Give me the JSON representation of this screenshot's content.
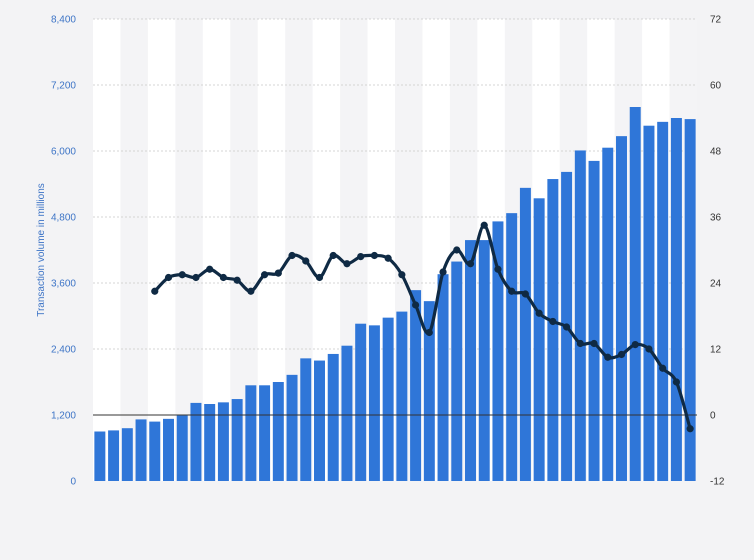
{
  "chart_data": {
    "type": "bar+line",
    "title": "",
    "xlabel": "",
    "ylabel": "Transaction volume in millions",
    "ylim": [
      0,
      8400
    ],
    "y2lim": [
      -12,
      72
    ],
    "yticks": [
      "0",
      "1,200",
      "2,400",
      "3,600",
      "4,800",
      "6,000",
      "7,200",
      "8,400"
    ],
    "y2ticks": [
      "-12",
      "0",
      "12",
      "24",
      "36",
      "48",
      "60",
      "72"
    ],
    "grid": true,
    "colors": {
      "bars": "#2f76d8",
      "line": "#0f2a44",
      "background": "#ffffff",
      "band": "#f4f4f6"
    },
    "series": [
      {
        "type": "bar",
        "axis": "left",
        "values": [
          900,
          920,
          960,
          1120,
          1080,
          1130,
          1190,
          1420,
          1400,
          1430,
          1490,
          1740,
          1740,
          1800,
          1930,
          2230,
          2190,
          2310,
          2460,
          2860,
          2830,
          2970,
          3080,
          3470,
          3270,
          3760,
          3990,
          4380,
          4380,
          4720,
          4870,
          5330,
          5140,
          5490,
          5620,
          6010,
          5820,
          6060,
          6270,
          6800,
          6460,
          6530,
          6600,
          6580
        ]
      },
      {
        "type": "line",
        "axis": "right",
        "values": [
          null,
          null,
          null,
          null,
          22.5,
          25,
          25.5,
          25,
          26.5,
          25,
          24.5,
          22.5,
          25.5,
          25.8,
          29,
          28,
          25,
          29,
          27.5,
          28.8,
          29,
          28.5,
          25.5,
          20,
          15,
          26,
          30,
          27.5,
          34.5,
          26.5,
          22.5,
          22,
          18.5,
          17,
          16,
          13,
          13,
          10.5,
          11,
          12.8,
          12,
          8.5,
          6,
          -2.5
        ]
      }
    ]
  }
}
